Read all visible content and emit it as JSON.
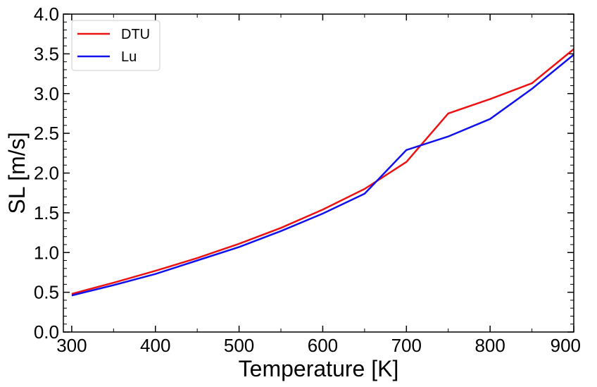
{
  "chart_data": {
    "type": "line",
    "xlabel": "Temperature [K]",
    "ylabel": "SL [m/s]",
    "xlim": [
      290,
      900
    ],
    "ylim": [
      0.0,
      4.0
    ],
    "xticks": [
      300,
      400,
      500,
      600,
      700,
      800,
      900
    ],
    "xtick_labels": [
      "300",
      "400",
      "500",
      "600",
      "700",
      "800",
      "900"
    ],
    "xminor_step": 50,
    "yticks": [
      0.0,
      0.5,
      1.0,
      1.5,
      2.0,
      2.5,
      3.0,
      3.5,
      4.0
    ],
    "ytick_labels": [
      "0.0",
      "0.5",
      "1.0",
      "1.5",
      "2.0",
      "2.5",
      "3.0",
      "3.5",
      "4.0"
    ],
    "yminor_step": 0.1,
    "grid": false,
    "legend_position": "top-left",
    "x": [
      300,
      350,
      400,
      450,
      500,
      550,
      600,
      650,
      700,
      750,
      800,
      850,
      900
    ],
    "series": [
      {
        "name": "DTU",
        "color": "#ee1111",
        "values": [
          0.48,
          0.62,
          0.77,
          0.93,
          1.11,
          1.31,
          1.54,
          1.8,
          2.14,
          2.75,
          2.93,
          3.13,
          3.56
        ]
      },
      {
        "name": "Lu",
        "color": "#1111ee",
        "values": [
          0.46,
          0.59,
          0.73,
          0.9,
          1.07,
          1.27,
          1.49,
          1.74,
          2.29,
          2.46,
          2.68,
          3.06,
          3.49
        ]
      }
    ]
  }
}
